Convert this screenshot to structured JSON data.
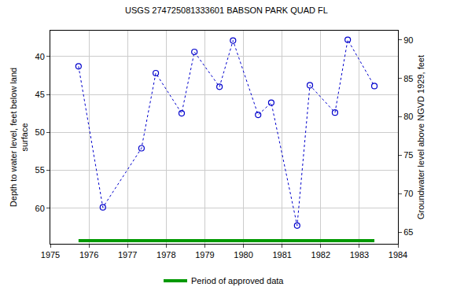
{
  "chart_data": {
    "type": "scatter",
    "title": "USGS 274725081333601 BABSON PARK QUAD FL",
    "y_label": [
      "Depth to water level, feet below land",
      "surface"
    ],
    "y2_label": "Groundwater level above NGVD 1929, feet",
    "x": [
      1975.73,
      1976.36,
      1977.36,
      1977.73,
      1978.4,
      1978.73,
      1979.38,
      1979.73,
      1980.38,
      1980.72,
      1981.39,
      1981.72,
      1982.37,
      1982.7,
      1983.39
    ],
    "series": [
      {
        "name": "Depth to water level",
        "color": "#0000cc",
        "marker": "open_circle",
        "line_style": "dot",
        "values": [
          41.3,
          59.9,
          52.1,
          42.2,
          47.5,
          39.4,
          44.0,
          37.9,
          47.7,
          46.1,
          62.3,
          43.8,
          47.4,
          37.8,
          43.9
        ]
      }
    ],
    "approved_period": {
      "name": "Period of approved data",
      "color": "#009900",
      "start": 1975.73,
      "end": 1983.39
    },
    "xlim": [
      1975,
      1984
    ],
    "xticks": [
      1975,
      1976,
      1977,
      1978,
      1979,
      1980,
      1981,
      1982,
      1983,
      1984
    ],
    "ylim": [
      64.7,
      36.6
    ],
    "yticks": [
      40,
      45,
      50,
      55,
      60
    ],
    "y2lim": [
      63.5,
      91.2
    ],
    "y2ticks": [
      65,
      70,
      75,
      80,
      85,
      90
    ],
    "grid": true,
    "legend": "bottom"
  }
}
